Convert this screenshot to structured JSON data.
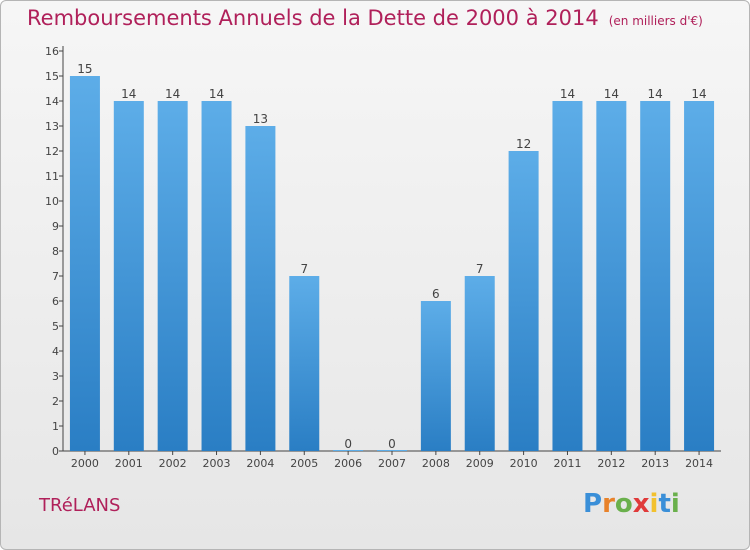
{
  "title": "Remboursements Annuels de la Dette de 2000 à 2014",
  "unit": "(en milliers d'€)",
  "commune": "TRéLANS",
  "logo": {
    "letters": [
      "P",
      "r",
      "o",
      "x",
      "i",
      "t",
      "i"
    ],
    "colors": [
      "#3a8fd8",
      "#e8822a",
      "#6ab04c",
      "#e03a3a",
      "#f2c12e",
      "#3a8fd8",
      "#6ab04c"
    ]
  },
  "colors": {
    "bar_light": "#5dade8",
    "bar_dark": "#2a7ec4",
    "accent": "#b0205a"
  },
  "chart_data": {
    "type": "bar",
    "title": "Remboursements Annuels de la Dette de 2000 à 2014",
    "xlabel": "",
    "ylabel": "",
    "categories": [
      "2000",
      "2001",
      "2002",
      "2003",
      "2004",
      "2005",
      "2006",
      "2007",
      "2008",
      "2009",
      "2010",
      "2011",
      "2012",
      "2013",
      "2014"
    ],
    "values": [
      15,
      14,
      14,
      14,
      13,
      7,
      0,
      0,
      6,
      7,
      12,
      14,
      14,
      14,
      14
    ],
    "yticks": [
      0,
      1,
      2,
      3,
      4,
      5,
      6,
      7,
      8,
      9,
      10,
      11,
      12,
      13,
      14,
      15,
      16
    ],
    "ylim": [
      0,
      16
    ],
    "grid": false
  }
}
